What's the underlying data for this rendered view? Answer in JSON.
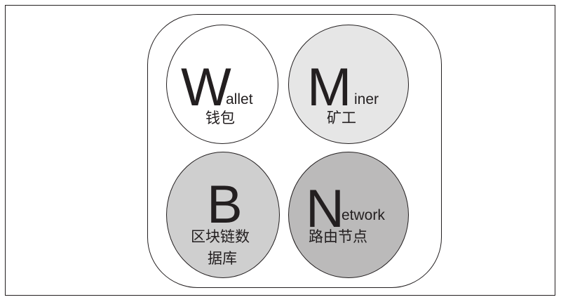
{
  "nodes": {
    "wallet": {
      "initial": "W",
      "rest": "allet",
      "cn": "钱包",
      "fill": "#ffffff"
    },
    "miner": {
      "initial": "M",
      "rest": "iner",
      "cn": "矿工",
      "fill": "#e6e6e6"
    },
    "blockchain": {
      "initial": "B",
      "rest": "",
      "cn_line1": "区块链数",
      "cn_line2": "据库",
      "fill": "#cfcfcf"
    },
    "network": {
      "initial": "N",
      "rest": "etwork",
      "cn": "路由节点",
      "fill": "#bbbaba"
    }
  },
  "colors": {
    "stroke": "#231f20",
    "background": "#ffffff"
  }
}
